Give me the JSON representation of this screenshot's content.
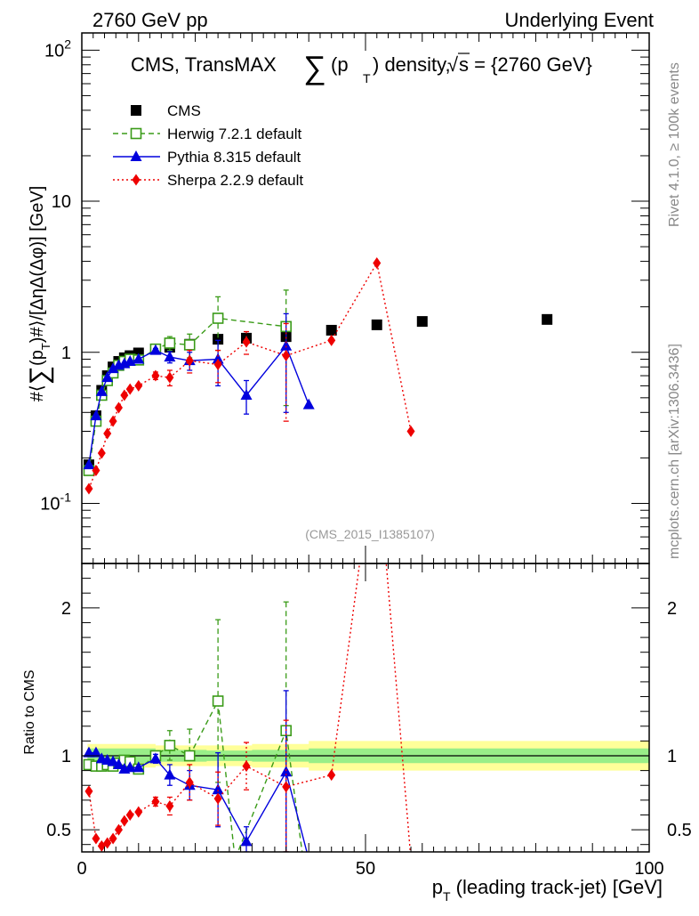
{
  "header": {
    "left": "2760 GeV pp",
    "right": "Underlying Event"
  },
  "side": {
    "rivet": "Rivet 4.1.0, ≥ 100k events",
    "mcplots": "mcplots.cern.ch [arXiv:1306.3436]"
  },
  "chart_data": {
    "type": "line",
    "title": {
      "prefix": "CMS, TransMAX",
      "sum": "∑",
      "var": "(p",
      "sub": "T",
      "suffix": ") density, ",
      "sqrt": "√",
      "energy": "s = {2760 GeV}"
    },
    "watermark": "(CMS_2015_I1385107)",
    "ylabel_main": "#⟨∑(p_T)#⟩/[ΔηΔ(Δφ)] [GeV]",
    "ylabel_ratio": "Ratio to CMS",
    "xlabel": "p_T (leading track-jet) [GeV]",
    "xlim": [
      0,
      100
    ],
    "ylim_main": [
      0.04,
      130
    ],
    "ylim_ratio": [
      0.35,
      2.3
    ],
    "x_ticks": [
      "0",
      "50",
      "100"
    ],
    "y_ticks_main": [
      "10^{-1}",
      "1",
      "10",
      "10^{2}"
    ],
    "y_ticks_ratio": [
      "0.5",
      "1",
      "2"
    ],
    "legend": [
      {
        "name": "CMS",
        "color": "#000000",
        "marker": "square-filled",
        "line": "none"
      },
      {
        "name": "Herwig 7.2.1 default",
        "color": "#3a9b18",
        "marker": "square-open",
        "line": "dashed"
      },
      {
        "name": "Pythia 8.315 default",
        "color": "#0000dd",
        "marker": "triangle",
        "line": "solid"
      },
      {
        "name": "Sherpa 2.2.9 default",
        "color": "#ee0000",
        "marker": "diamond",
        "line": "dotted"
      }
    ],
    "band": {
      "x": [
        1,
        13,
        22,
        30,
        40,
        100
      ],
      "inner": [
        0.05,
        0.04,
        0.035,
        0.04,
        0.05,
        0.05
      ],
      "outer": [
        0.08,
        0.07,
        0.07,
        0.08,
        0.1,
        0.1
      ]
    },
    "series": [
      {
        "name": "CMS",
        "x": [
          1.25,
          2.5,
          3.5,
          4.5,
          5.5,
          6.5,
          7.5,
          8.5,
          10,
          13,
          15.5,
          19,
          24,
          29,
          36,
          44,
          52,
          60,
          82
        ],
        "y": [
          0.18,
          0.38,
          0.56,
          0.7,
          0.8,
          0.87,
          0.92,
          0.95,
          0.99,
          1.05,
          1.08,
          1.13,
          1.22,
          1.24,
          1.27,
          1.4,
          1.52,
          1.6,
          1.65
        ]
      },
      {
        "name": "Herwig 7.2.1 default",
        "x": [
          1.25,
          2.5,
          3.5,
          4.5,
          5.5,
          6.5,
          7.5,
          8.5,
          10,
          13,
          15.5,
          19,
          24,
          36
        ],
        "y": [
          0.165,
          0.35,
          0.52,
          0.65,
          0.73,
          0.82,
          0.87,
          0.9,
          0.89,
          1.05,
          1.15,
          1.12,
          1.68,
          1.48
        ],
        "err": [
          0,
          0,
          0,
          0,
          0,
          0,
          0,
          0,
          0,
          0,
          0.12,
          0.2,
          0.65,
          1.1
        ]
      },
      {
        "name": "Pythia 8.315 default",
        "x": [
          1.25,
          2.5,
          3.5,
          4.5,
          5.5,
          6.5,
          7.5,
          8.5,
          10,
          13,
          15.5,
          19,
          24,
          29,
          36,
          40
        ],
        "y": [
          0.18,
          0.38,
          0.55,
          0.68,
          0.78,
          0.82,
          0.84,
          0.87,
          0.9,
          1.03,
          0.93,
          0.88,
          0.9,
          0.52,
          1.1,
          0.45
        ],
        "err": [
          0,
          0,
          0,
          0,
          0,
          0,
          0,
          0,
          0,
          0.03,
          0.08,
          0.12,
          0.3,
          0.13,
          0.7,
          0
        ]
      },
      {
        "name": "Sherpa 2.2.9 default",
        "x": [
          1.25,
          2.5,
          3.5,
          4.5,
          5.5,
          6.5,
          7.5,
          8.5,
          10,
          13,
          15.5,
          19,
          24,
          29,
          36,
          44,
          52,
          58
        ],
        "y": [
          0.125,
          0.165,
          0.215,
          0.29,
          0.35,
          0.43,
          0.52,
          0.57,
          0.6,
          0.7,
          0.68,
          0.88,
          0.83,
          1.17,
          0.95,
          1.2,
          3.9,
          0.3
        ],
        "err": [
          0,
          0,
          0,
          0,
          0,
          0,
          0,
          0,
          0,
          0.04,
          0.08,
          0.15,
          0.2,
          0.2,
          0.6,
          0,
          0,
          0
        ]
      }
    ],
    "ratio": [
      {
        "name": "Herwig 7.2.1 default",
        "x": [
          1.25,
          2.5,
          3.5,
          4.5,
          5.5,
          6.5,
          7.5,
          8.5,
          10,
          13,
          15.5,
          19,
          24,
          27,
          36,
          39
        ],
        "y": [
          0.94,
          0.93,
          0.93,
          0.94,
          0.93,
          0.95,
          0.97,
          0.96,
          0.91,
          1.0,
          1.07,
          1.0,
          1.37,
          0.3,
          1.17,
          0.3
        ],
        "err": [
          0,
          0,
          0,
          0,
          0,
          0,
          0,
          0,
          0,
          0,
          0.1,
          0.18,
          0.55,
          0,
          0.87,
          0
        ]
      },
      {
        "name": "Pythia 8.315 default",
        "x": [
          1.25,
          2.5,
          3.5,
          4.5,
          5.5,
          6.5,
          7.5,
          8.5,
          10,
          13,
          15.5,
          19,
          24,
          29,
          36,
          40
        ],
        "y": [
          1.02,
          1.02,
          0.98,
          0.97,
          0.96,
          0.94,
          0.91,
          0.92,
          0.92,
          0.98,
          0.87,
          0.8,
          0.77,
          0.42,
          0.89,
          0.3
        ],
        "err": [
          0,
          0,
          0,
          0,
          0,
          0,
          0,
          0,
          0,
          0.03,
          0.07,
          0.1,
          0.25,
          0.1,
          0.55,
          0
        ]
      },
      {
        "name": "Sherpa 2.2.9 default",
        "x": [
          1.25,
          2.5,
          3.5,
          4.5,
          5.5,
          6.5,
          7.5,
          8.5,
          10,
          13,
          15.5,
          19,
          24,
          29,
          36,
          44,
          50,
          53,
          58
        ],
        "y": [
          0.76,
          0.44,
          0.39,
          0.41,
          0.44,
          0.5,
          0.56,
          0.6,
          0.62,
          0.69,
          0.66,
          0.82,
          0.71,
          0.93,
          0.79,
          0.87,
          2.6,
          2.6,
          0.3
        ],
        "err": [
          0,
          0,
          0,
          0,
          0,
          0,
          0,
          0,
          0,
          0.03,
          0.06,
          0.12,
          0.18,
          0.16,
          0.45,
          0,
          0,
          0,
          0
        ]
      }
    ]
  }
}
